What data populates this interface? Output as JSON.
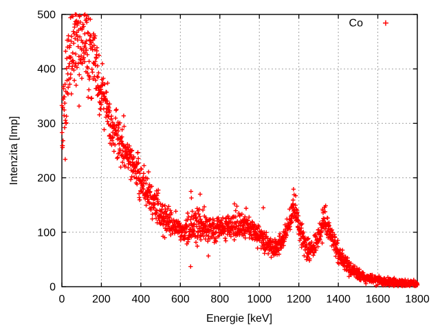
{
  "window": {
    "background": "#ffffff"
  },
  "chart_data": {
    "type": "scatter",
    "title": "",
    "xlabel": "Energie [keV]",
    "ylabel": "Intenzita [Imp]",
    "xlim": [
      0,
      1800
    ],
    "ylim": [
      0,
      500
    ],
    "xticks": [
      0,
      200,
      400,
      600,
      800,
      1000,
      1200,
      1400,
      1600,
      1800
    ],
    "yticks": [
      0,
      100,
      200,
      300,
      400,
      500
    ],
    "grid": {
      "show": true,
      "style": "dotted",
      "color": "#a0a0a0"
    },
    "axis_color": "#000000",
    "text_color": "#000000",
    "legend": {
      "position": "top-right",
      "entries": [
        {
          "label": "Co",
          "marker": "plus",
          "color": "#ff0000"
        }
      ]
    },
    "series": [
      {
        "name": "Co",
        "marker": "plus",
        "color": "#ff0000",
        "x_step_kev": 1,
        "noise_model": "poisson-gaussian",
        "seed": 1337,
        "envelope": [
          [
            0,
            300,
            2.8
          ],
          [
            15,
            340,
            2.6
          ],
          [
            35,
            420,
            2.2
          ],
          [
            60,
            448,
            2.0
          ],
          [
            90,
            452,
            2.0
          ],
          [
            120,
            442,
            1.9
          ],
          [
            150,
            428,
            1.7
          ],
          [
            175,
            398,
            1.5
          ],
          [
            200,
            352,
            1.35
          ],
          [
            250,
            298,
            1.25
          ],
          [
            300,
            260,
            1.2
          ],
          [
            350,
            232,
            1.2
          ],
          [
            400,
            196,
            1.2
          ],
          [
            450,
            162,
            1.15
          ],
          [
            500,
            132,
            1.1
          ],
          [
            550,
            116,
            1.1
          ],
          [
            600,
            106,
            1.1
          ],
          [
            635,
            102,
            1.1
          ],
          [
            665,
            110,
            1.25
          ],
          [
            690,
            117,
            1.3
          ],
          [
            715,
            109,
            1.15
          ],
          [
            755,
            102,
            1.1
          ],
          [
            800,
            105,
            1.1
          ],
          [
            850,
            110,
            1.1
          ],
          [
            890,
            114,
            1.15
          ],
          [
            930,
            111,
            1.1
          ],
          [
            970,
            102,
            1.1
          ],
          [
            1000,
            92,
            1.1
          ],
          [
            1040,
            78,
            1.1
          ],
          [
            1075,
            69,
            1.1
          ],
          [
            1105,
            76,
            1.1
          ],
          [
            1135,
            97,
            1.1
          ],
          [
            1158,
            126,
            1.1
          ],
          [
            1172,
            141,
            1.1
          ],
          [
            1186,
            128,
            1.1
          ],
          [
            1205,
            103,
            1.1
          ],
          [
            1230,
            78,
            1.1
          ],
          [
            1255,
            67,
            1.1
          ],
          [
            1278,
            73,
            1.1
          ],
          [
            1300,
            92,
            1.1
          ],
          [
            1318,
            112,
            1.1
          ],
          [
            1332,
            123,
            1.1
          ],
          [
            1347,
            112,
            1.1
          ],
          [
            1365,
            92,
            1.1
          ],
          [
            1390,
            68,
            1.1
          ],
          [
            1415,
            53,
            1.1
          ],
          [
            1445,
            40,
            1.1
          ],
          [
            1475,
            29,
            1.15
          ],
          [
            1505,
            21,
            1.15
          ],
          [
            1540,
            15,
            1.2
          ],
          [
            1580,
            12,
            1.2
          ],
          [
            1620,
            10,
            1.2
          ],
          [
            1680,
            8,
            1.2
          ],
          [
            1740,
            6,
            1.25
          ],
          [
            1800,
            5,
            1.3
          ]
        ],
        "outliers": [
          [
            652,
            37
          ],
          [
            654,
            175
          ],
          [
            656,
            163
          ],
          [
            700,
            170
          ],
          [
            874,
            152
          ],
          [
            933,
            144
          ],
          [
            1020,
            145
          ],
          [
            1173,
            179
          ],
          [
            1184,
            167
          ],
          [
            1329,
            146
          ]
        ]
      }
    ]
  }
}
